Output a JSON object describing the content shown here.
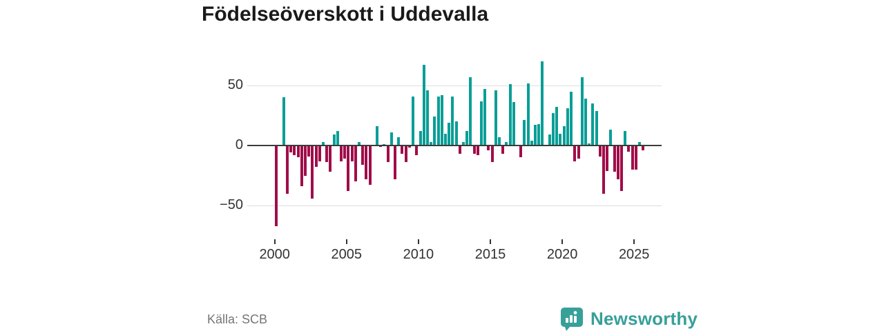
{
  "header": {
    "title": "Födelseöverskott i Uddevalla"
  },
  "chart_data": {
    "type": "bar",
    "title": "Födelseöverskott i Uddevalla",
    "frequency": "quarterly",
    "start_year": 2000,
    "start_quarter": 1,
    "values": [
      -67,
      0,
      40,
      -40,
      -6,
      -8,
      -10,
      -34,
      -25,
      -9,
      -44,
      -18,
      -13,
      3,
      -14,
      -22,
      9,
      12,
      -13,
      -11,
      -38,
      -13,
      -30,
      3,
      -16,
      -28,
      -33,
      0,
      16,
      -1,
      1,
      -14,
      11,
      -28,
      7,
      -7,
      -14,
      -2,
      41,
      -8,
      12,
      67,
      46,
      3,
      24,
      41,
      42,
      10,
      19,
      41,
      20,
      -7,
      3,
      12,
      57,
      -7,
      -8,
      37,
      47,
      -4,
      -14,
      46,
      7,
      -7,
      3,
      51,
      36,
      0,
      -10,
      21,
      52,
      4,
      17,
      18,
      70,
      0,
      9,
      27,
      32,
      10,
      16,
      31,
      45,
      -13,
      -11,
      57,
      39,
      2,
      35,
      29,
      -9,
      -40,
      -21,
      13,
      -22,
      -28,
      -38,
      12,
      -5,
      -20,
      -20,
      3,
      -4
    ],
    "yticks": [
      50,
      0,
      -50
    ],
    "ytick_labels": [
      "50",
      "0",
      "−50"
    ],
    "xticks": [
      2000,
      2005,
      2010,
      2015,
      2020,
      2025
    ],
    "ylim": [
      -70,
      72
    ],
    "grid": "horizontal",
    "legend": "none",
    "colors": {
      "positive": "#0a9e97",
      "negative": "#a00d49",
      "axis_line": "#3b3b3b",
      "gridline": "#dedede",
      "tick_text": "#333333"
    }
  },
  "footer": {
    "source": "Källa: SCB",
    "brand": "Newsworthy",
    "brand_color": "#37a099"
  }
}
